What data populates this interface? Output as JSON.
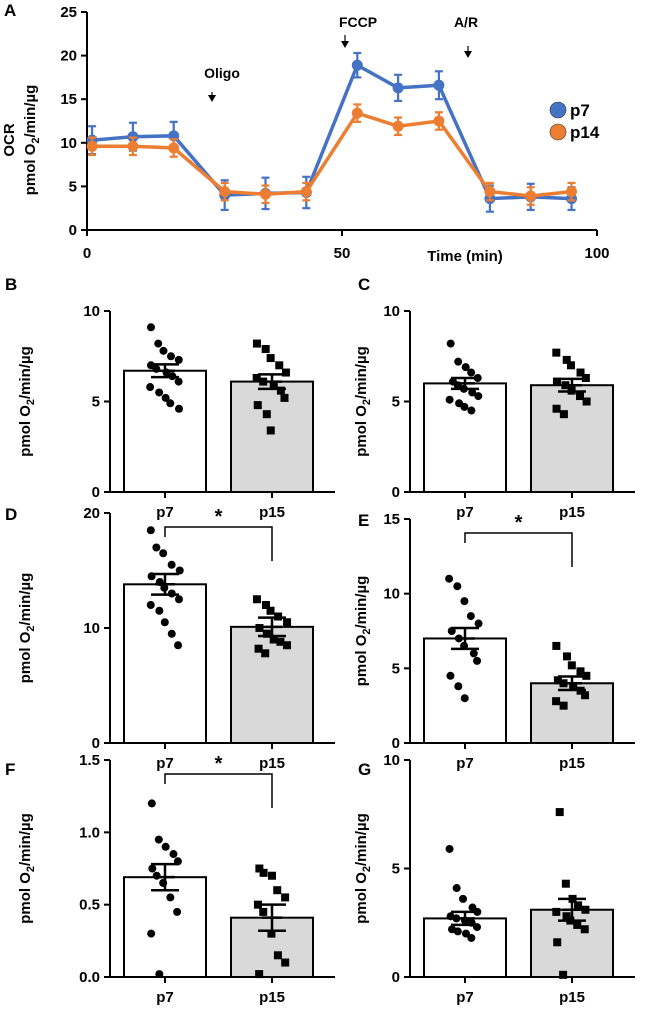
{
  "chart_data": [
    {
      "panel": "A",
      "type": "line",
      "xlabel": "Time (min)",
      "ylabel_line1": "OCR",
      "ylabel_line2": "pmol O",
      "ylabel_sub": "2",
      "ylabel_tail": "/min/µg",
      "xlim": [
        0,
        100
      ],
      "ylim": [
        0,
        25
      ],
      "xticks": [
        "0",
        "50",
        "100"
      ],
      "yticks": [
        "0",
        "5",
        "10",
        "15",
        "20",
        "25"
      ],
      "annotations": [
        {
          "label": "Oligo",
          "x": 25
        },
        {
          "label": "FCCP",
          "x": 50
        },
        {
          "label": "A/R",
          "x": 75
        }
      ],
      "x": [
        1,
        9,
        17,
        27,
        35,
        43,
        53,
        61,
        69,
        79,
        87,
        95
      ],
      "series": [
        {
          "name": "p7",
          "color": "#4472C4",
          "values": [
            10.3,
            10.7,
            10.8,
            4.0,
            4.2,
            4.3,
            18.9,
            16.3,
            16.6,
            3.6,
            3.8,
            3.6
          ],
          "errors": [
            1.6,
            1.6,
            1.6,
            1.7,
            1.8,
            1.8,
            1.4,
            1.5,
            1.6,
            1.5,
            1.5,
            1.3
          ]
        },
        {
          "name": "p14",
          "color": "#ED7D31",
          "values": [
            9.6,
            9.6,
            9.4,
            4.4,
            4.1,
            4.4,
            13.4,
            11.9,
            12.5,
            4.4,
            3.9,
            4.4
          ],
          "errors": [
            1.0,
            1.0,
            1.0,
            1.0,
            1.0,
            1.0,
            1.0,
            1.0,
            1.0,
            1.0,
            1.0,
            1.0
          ]
        }
      ]
    },
    {
      "panel": "B",
      "type": "bar",
      "categories": [
        "p7",
        "p15"
      ],
      "ylim": [
        0,
        10
      ],
      "yticks": [
        "0",
        "5",
        "10"
      ],
      "ylabel": "pmol O",
      "ylabel_sub": "2",
      "ylabel_tail": "/min/µg",
      "values": [
        6.7,
        6.1
      ],
      "errors": [
        0.35,
        0.4
      ],
      "points": [
        [
          9.1,
          8.2,
          7.8,
          7.5,
          7.3,
          7.0,
          6.8,
          6.6,
          6.4,
          6.1,
          5.8,
          5.5,
          5.2,
          4.9,
          4.6
        ],
        [
          8.2,
          7.9,
          7.4,
          7.0,
          6.6,
          6.3,
          6.1,
          5.9,
          5.6,
          5.2,
          4.8,
          4.3,
          3.4
        ]
      ],
      "significance": null
    },
    {
      "panel": "C",
      "type": "bar",
      "categories": [
        "p7",
        "p15"
      ],
      "ylim": [
        0,
        10
      ],
      "yticks": [
        "0",
        "5",
        "10"
      ],
      "ylabel": "pmol O",
      "ylabel_sub": "2",
      "ylabel_tail": "/min/µg",
      "values": [
        6.0,
        5.9
      ],
      "errors": [
        0.3,
        0.35
      ],
      "points": [
        [
          8.2,
          7.2,
          6.9,
          6.6,
          6.3,
          6.1,
          5.9,
          5.7,
          5.5,
          5.3,
          5.1,
          4.9,
          4.7,
          4.5
        ],
        [
          7.7,
          7.3,
          7.0,
          6.6,
          6.3,
          6.1,
          5.9,
          5.6,
          5.3,
          5.0,
          4.6,
          4.3
        ]
      ],
      "significance": null
    },
    {
      "panel": "D",
      "type": "bar",
      "categories": [
        "p7",
        "p15"
      ],
      "ylim": [
        0,
        20
      ],
      "yticks": [
        "0",
        "10",
        "20"
      ],
      "ylabel": "pmol O",
      "ylabel_sub": "2",
      "ylabel_tail": "/min/µg",
      "values": [
        13.8,
        10.1
      ],
      "errors": [
        0.9,
        0.8
      ],
      "points": [
        [
          18.5,
          17.0,
          16.5,
          15.5,
          15.0,
          14.5,
          14.0,
          13.5,
          13.0,
          12.5,
          12.0,
          11.5,
          10.5,
          9.5,
          8.5
        ],
        [
          12.5,
          12.0,
          11.5,
          11.0,
          10.5,
          10.0,
          9.5,
          9.0,
          8.8,
          8.5,
          8.2,
          7.8
        ]
      ],
      "significance": "*"
    },
    {
      "panel": "E",
      "type": "bar",
      "categories": [
        "p7",
        "p15"
      ],
      "ylim": [
        0,
        15
      ],
      "yticks": [
        "0",
        "5",
        "10",
        "15"
      ],
      "ylabel": "pmol O",
      "ylabel_sub": "2",
      "ylabel_tail": "/min/µg",
      "values": [
        7.0,
        4.0
      ],
      "errors": [
        0.7,
        0.45
      ],
      "points": [
        [
          11.0,
          10.5,
          9.5,
          8.5,
          8.0,
          7.5,
          7.0,
          6.5,
          6.0,
          5.5,
          4.5,
          3.8,
          3.0
        ],
        [
          6.5,
          5.8,
          5.2,
          4.8,
          4.5,
          4.2,
          4.0,
          3.8,
          3.5,
          3.2,
          2.8,
          2.5
        ]
      ],
      "significance": "*"
    },
    {
      "panel": "F",
      "type": "bar",
      "categories": [
        "p7",
        "p15"
      ],
      "ylim": [
        0,
        1.5
      ],
      "yticks": [
        "0.0",
        "0.5",
        "1.0",
        "1.5"
      ],
      "ylabel": "pmol O",
      "ylabel_sub": "2",
      "ylabel_tail": "/min/µg",
      "values": [
        0.69,
        0.41
      ],
      "errors": [
        0.09,
        0.09
      ],
      "points": [
        [
          1.2,
          0.95,
          0.9,
          0.85,
          0.8,
          0.75,
          0.7,
          0.65,
          0.55,
          0.45,
          0.3,
          0.02
        ],
        [
          0.75,
          0.72,
          0.7,
          0.6,
          0.55,
          0.5,
          0.45,
          0.3,
          0.15,
          0.1,
          0.02
        ]
      ],
      "significance": "*"
    },
    {
      "panel": "G",
      "type": "bar",
      "categories": [
        "p7",
        "p15"
      ],
      "ylim": [
        0,
        10
      ],
      "yticks": [
        "0",
        "5",
        "10"
      ],
      "ylabel": "pmol O",
      "ylabel_sub": "2",
      "ylabel_tail": "/min/µg",
      "values": [
        2.7,
        3.1
      ],
      "errors": [
        0.3,
        0.5
      ],
      "points": [
        [
          5.9,
          4.1,
          3.6,
          3.2,
          3.0,
          2.8,
          2.7,
          2.6,
          2.5,
          2.3,
          2.2,
          2.1,
          2.0,
          1.8
        ],
        [
          7.6,
          4.3,
          3.6,
          3.3,
          3.1,
          3.0,
          2.8,
          2.6,
          2.4,
          2.2,
          1.6,
          0.1
        ]
      ],
      "significance": null
    }
  ]
}
